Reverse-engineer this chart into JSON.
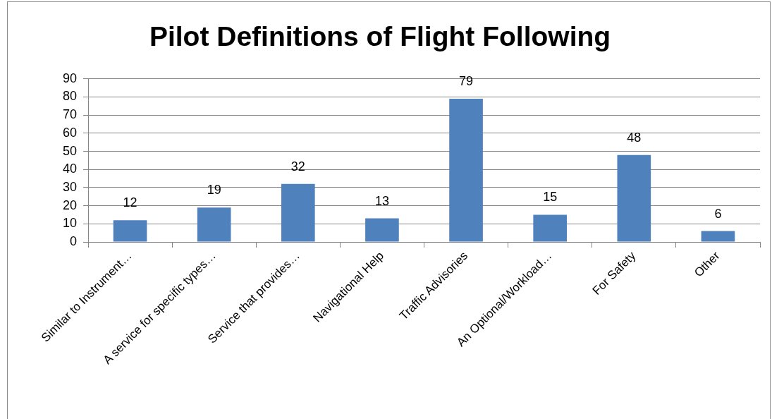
{
  "chart_data": {
    "type": "bar",
    "title": "Pilot Definitions of Flight Following",
    "categories": [
      "Similar to Instrument…",
      "A service for specific types…",
      "Service that provides…",
      "Navigational Help",
      "Traffic Advisories",
      "An Optional/Workload…",
      "For Safety",
      "Other"
    ],
    "values": [
      12,
      19,
      32,
      13,
      79,
      15,
      48,
      6
    ],
    "color": "#4f81bd",
    "ylim": [
      0,
      90
    ],
    "yticks": [
      0,
      10,
      20,
      30,
      40,
      50,
      60,
      70,
      80,
      90
    ],
    "grid": "y",
    "data_labels": true
  }
}
